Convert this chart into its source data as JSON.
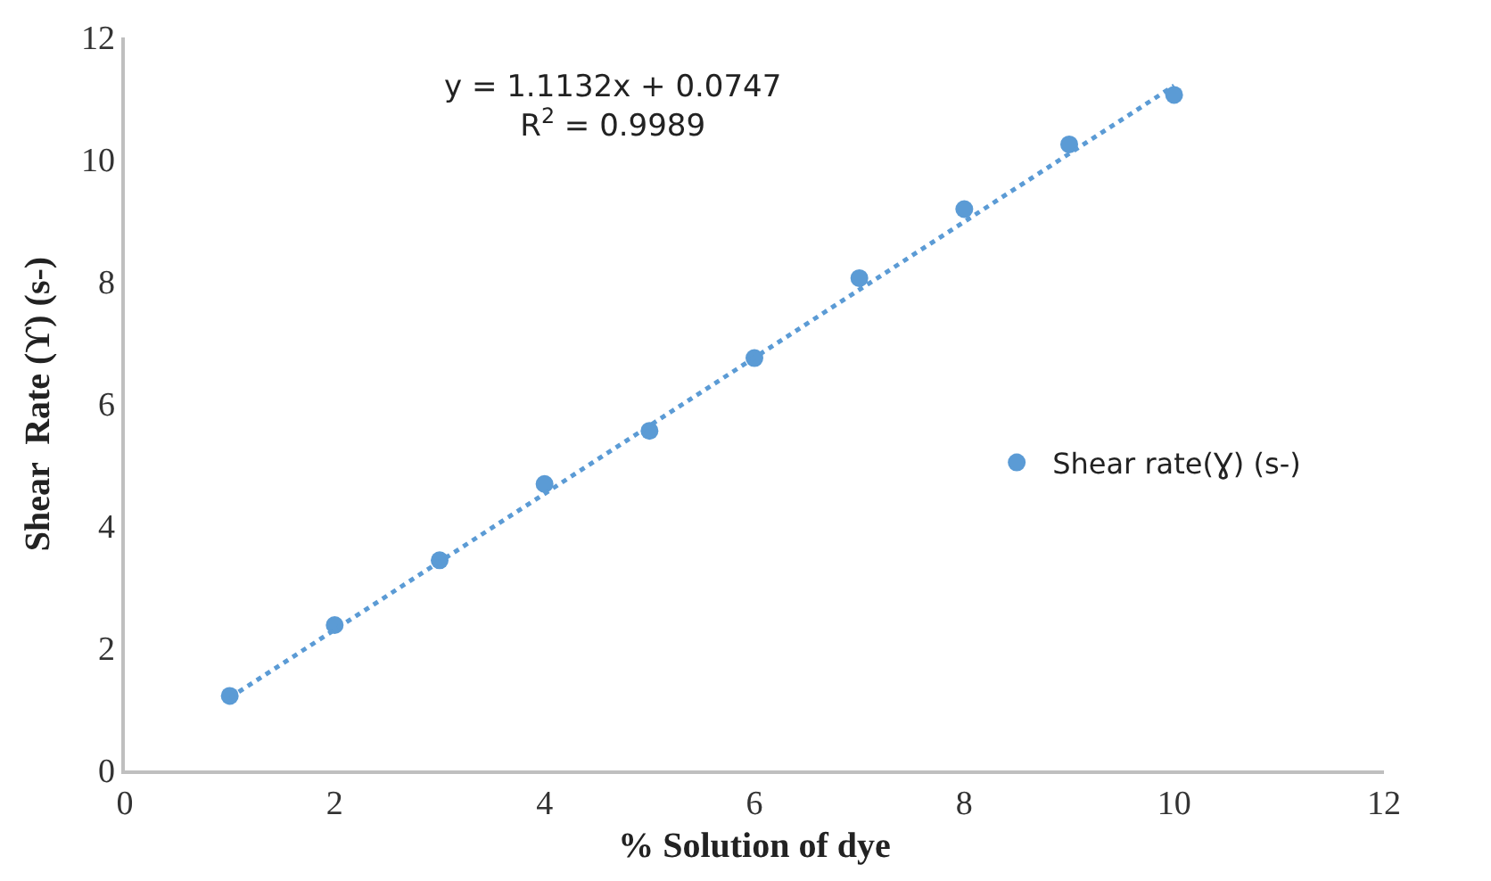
{
  "chart_data": {
    "type": "scatter",
    "xlabel": "% Solution of dye",
    "ylabel": "Shear  Rate (ϒ) (s-)",
    "annotations": [
      "y = 1.1132x + 0.0747\nR$^{2}$ = 0.9989"
    ],
    "x": [
      1,
      2,
      3,
      4,
      5,
      6,
      7,
      8,
      9,
      10
    ],
    "series": [
      {
        "name": "Shear rate(Ɣ) (s-)",
        "color": "#5b9bd5",
        "values": [
          1.22,
          2.38,
          3.44,
          4.69,
          5.56,
          6.75,
          8.06,
          9.19,
          10.25,
          11.06
        ],
        "marker": "circle"
      },
      {
        "type": "line",
        "color": "#5b9bd5",
        "x": [
          1,
          10
        ],
        "values": [
          1.19,
          11.21
        ],
        "line_style": "dotted",
        "marker": "none"
      }
    ],
    "xlim": [
      0,
      12
    ],
    "xticks": [
      0,
      2,
      4,
      6,
      8,
      10,
      12
    ],
    "ylim": [
      0,
      12
    ],
    "yticks": [
      0,
      2,
      4,
      6,
      8,
      10,
      12
    ],
    "grid": false,
    "legend": "right"
  }
}
